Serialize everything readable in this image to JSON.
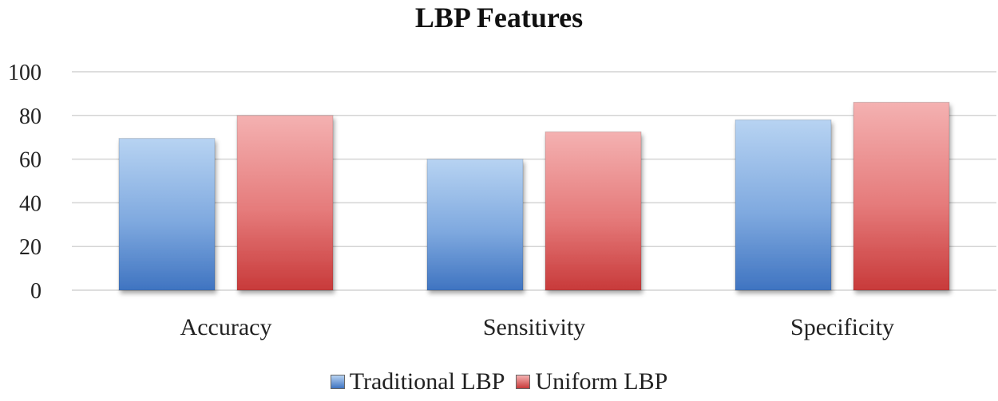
{
  "chart_data": {
    "type": "bar",
    "title": "LBP Features",
    "categories": [
      "Accuracy",
      "Sensitivity",
      "Specificity"
    ],
    "series": [
      {
        "name": "Traditional LBP",
        "values": [
          69.5,
          60,
          78
        ],
        "color": "#6a9bd6"
      },
      {
        "name": "Uniform LBP",
        "values": [
          80,
          72.5,
          86
        ],
        "color": "#e06a6a"
      }
    ],
    "ylim": [
      0,
      100
    ],
    "yticks": [
      "0",
      "20",
      "40",
      "60",
      "80",
      "100"
    ],
    "grid": true,
    "legend_position": "bottom"
  }
}
